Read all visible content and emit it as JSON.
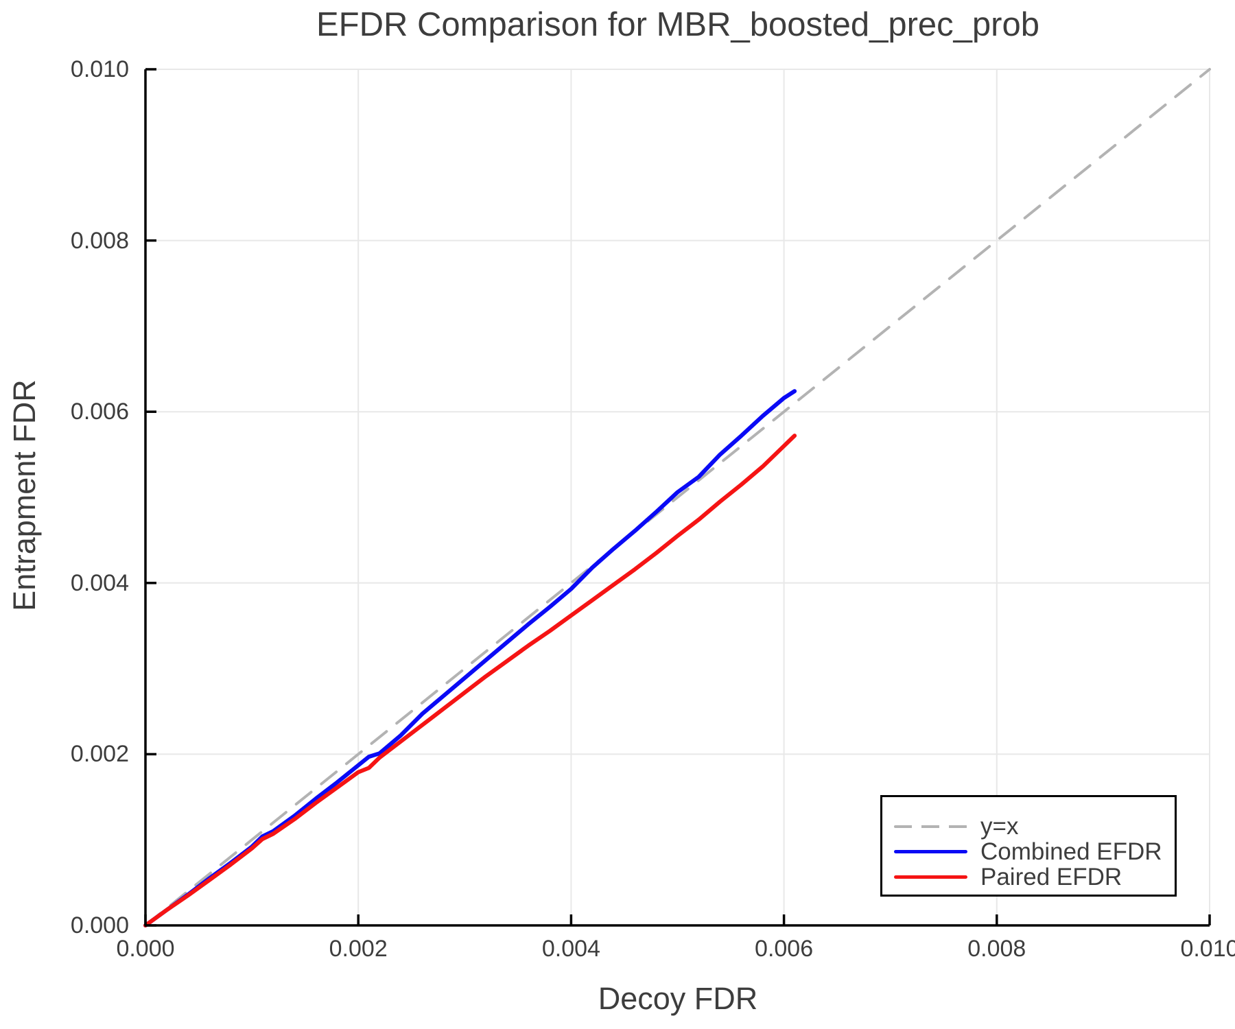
{
  "chart_data": {
    "type": "line",
    "title": "EFDR Comparison for MBR_boosted_prec_prob",
    "xlabel": "Decoy FDR",
    "ylabel": "Entrapment FDR",
    "xlim": [
      0.0,
      0.01
    ],
    "ylim": [
      0.0,
      0.01
    ],
    "x_tick_values": [
      0.0,
      0.002,
      0.004,
      0.006,
      0.008,
      0.01
    ],
    "x_tick_labels": [
      "0.000",
      "0.002",
      "0.004",
      "0.006",
      "0.008",
      "0.010"
    ],
    "y_tick_values": [
      0.0,
      0.002,
      0.004,
      0.006,
      0.008,
      0.01
    ],
    "y_tick_labels": [
      "0.000",
      "0.002",
      "0.004",
      "0.006",
      "0.008",
      "0.010"
    ],
    "grid": true,
    "legend_position": "lower right",
    "series": [
      {
        "name": "y=x",
        "style": "dashed",
        "color": "#b3b3b3",
        "width": 4,
        "x": [
          0.0,
          0.01
        ],
        "y": [
          0.0,
          0.01
        ]
      },
      {
        "name": "Combined EFDR",
        "style": "solid",
        "color": "#0a0af5",
        "width": 6,
        "x": [
          0.0,
          0.0002,
          0.0004,
          0.0006,
          0.0008,
          0.001,
          0.0011,
          0.0012,
          0.0014,
          0.0016,
          0.0018,
          0.002,
          0.0021,
          0.0022,
          0.0024,
          0.0026,
          0.0028,
          0.003,
          0.0032,
          0.0034,
          0.0036,
          0.0038,
          0.004,
          0.0042,
          0.0044,
          0.0046,
          0.0048,
          0.005,
          0.0052,
          0.0054,
          0.0056,
          0.0058,
          0.006,
          0.0061
        ],
        "y": [
          0.0,
          0.00018,
          0.00036,
          0.00055,
          0.00073,
          0.00092,
          0.00104,
          0.0011,
          0.00128,
          0.00148,
          0.00167,
          0.00187,
          0.00197,
          0.00201,
          0.00222,
          0.00247,
          0.00268,
          0.00289,
          0.0031,
          0.00331,
          0.00352,
          0.00372,
          0.00393,
          0.00418,
          0.0044,
          0.00461,
          0.00483,
          0.00506,
          0.00524,
          0.0055,
          0.00572,
          0.00595,
          0.00616,
          0.00624
        ]
      },
      {
        "name": "Paired EFDR",
        "style": "solid",
        "color": "#f51414",
        "width": 6,
        "x": [
          0.0,
          0.0002,
          0.0004,
          0.0006,
          0.0008,
          0.001,
          0.0011,
          0.0012,
          0.0014,
          0.0016,
          0.0018,
          0.002,
          0.0021,
          0.0022,
          0.0024,
          0.0026,
          0.0028,
          0.003,
          0.0032,
          0.0034,
          0.0036,
          0.0038,
          0.004,
          0.0042,
          0.0044,
          0.0046,
          0.0048,
          0.005,
          0.0052,
          0.0054,
          0.0056,
          0.0058,
          0.006,
          0.0061
        ],
        "y": [
          0.0,
          0.00018,
          0.00035,
          0.00053,
          0.00071,
          0.0009,
          0.00101,
          0.00107,
          0.00124,
          0.00143,
          0.00161,
          0.00179,
          0.00184,
          0.00196,
          0.00215,
          0.00234,
          0.00253,
          0.00272,
          0.00291,
          0.00309,
          0.00327,
          0.00344,
          0.00362,
          0.0038,
          0.00398,
          0.00416,
          0.00435,
          0.00455,
          0.00474,
          0.00495,
          0.00515,
          0.00536,
          0.0056,
          0.00572
        ]
      }
    ]
  },
  "legend": {
    "entries": [
      {
        "label": "y=x"
      },
      {
        "label": "Combined EFDR"
      },
      {
        "label": "Paired EFDR"
      }
    ]
  },
  "colors": {
    "text": "#3d3d3d",
    "grid": "#e8e8e8",
    "axis": "#000000",
    "reference_line": "#b3b3b3",
    "combined_efdr": "#0a0af5",
    "paired_efdr": "#f51414",
    "background": "#ffffff"
  }
}
